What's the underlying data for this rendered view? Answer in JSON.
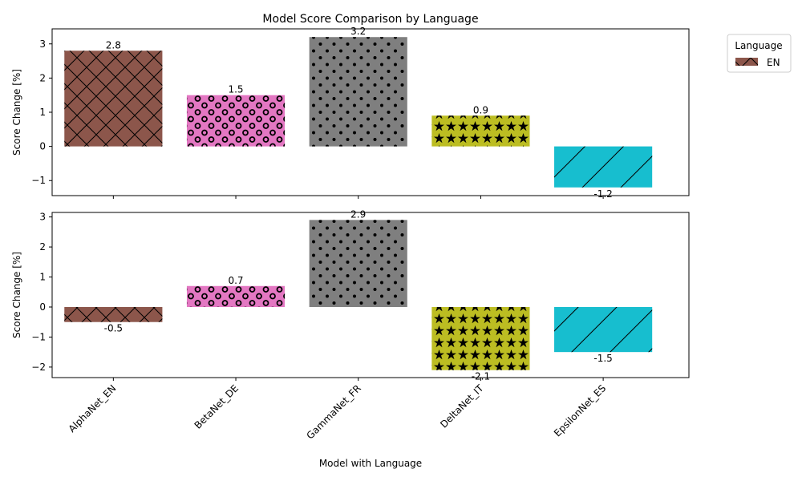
{
  "chart_data": {
    "type": "bar",
    "title": "Model Score Comparison by Language",
    "xlabel": "Model with Language",
    "ylabel": "Score Change [%]",
    "categories": [
      "AlphaNet_EN",
      "BetaNet_DE",
      "GammaNet_FR",
      "DeltaNet_IT",
      "EpsilonNet_ES"
    ],
    "colors": [
      "#8c564b",
      "#e377c2",
      "#7f7f7f",
      "#bcbd22",
      "#17becf"
    ],
    "hatches": [
      "crosshatch",
      "rings",
      "dots",
      "stars",
      "diagonal"
    ],
    "legend": {
      "title": "Language",
      "entries": [
        "EN"
      ],
      "placement": "outside-top-right"
    },
    "panels": [
      {
        "values": [
          2.8,
          1.5,
          3.2,
          0.9,
          -1.2
        ],
        "data_labels": [
          "2.8",
          "1.5",
          "3.2",
          "0.9",
          "-1.2"
        ],
        "ylim": [
          -1.44,
          3.44
        ],
        "yticks": [
          -1,
          0,
          1,
          2,
          3
        ]
      },
      {
        "values": [
          -0.5,
          0.7,
          2.9,
          -2.1,
          -1.5
        ],
        "data_labels": [
          "-0.5",
          "0.7",
          "2.9",
          "-2.1",
          "-1.5"
        ],
        "ylim": [
          -2.35,
          3.15
        ],
        "yticks": [
          -2,
          -1,
          0,
          1,
          2,
          3
        ]
      }
    ]
  }
}
